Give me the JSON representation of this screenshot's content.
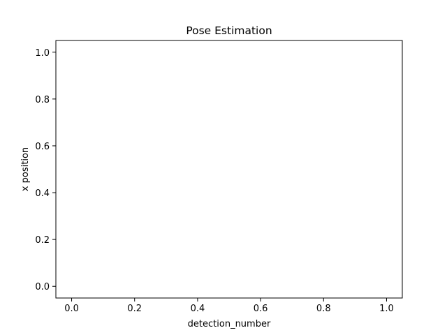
{
  "chart_data": {
    "type": "line",
    "title": "Pose Estimation",
    "xlabel": "detection_number",
    "ylabel": "x position",
    "xlim": [
      -0.05,
      1.05
    ],
    "ylim": [
      -0.05,
      1.05
    ],
    "x_ticks": [
      0.0,
      0.2,
      0.4,
      0.6,
      0.8,
      1.0
    ],
    "x_tick_labels": [
      "0.0",
      "0.2",
      "0.4",
      "0.6",
      "0.8",
      "1.0"
    ],
    "y_ticks": [
      0.0,
      0.2,
      0.4,
      0.6,
      0.8,
      1.0
    ],
    "y_tick_labels": [
      "0.0",
      "0.2",
      "0.4",
      "0.6",
      "0.8",
      "1.0"
    ],
    "grid": false,
    "series": []
  }
}
